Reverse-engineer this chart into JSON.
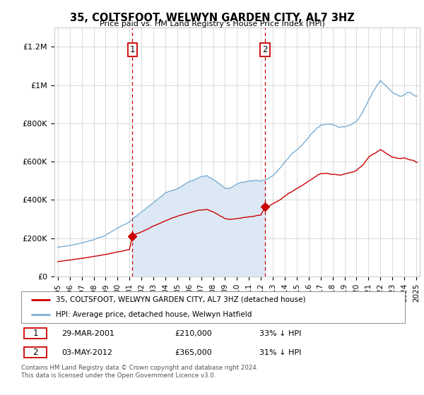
{
  "title": "35, COLTSFOOT, WELWYN GARDEN CITY, AL7 3HZ",
  "subtitle": "Price paid vs. HM Land Registry's House Price Index (HPI)",
  "legend_line1": "35, COLTSFOOT, WELWYN GARDEN CITY, AL7 3HZ (detached house)",
  "legend_line2": "HPI: Average price, detached house, Welwyn Hatfield",
  "transaction1_date": "29-MAR-2001",
  "transaction1_price": "£210,000",
  "transaction1_hpi": "33% ↓ HPI",
  "transaction2_date": "03-MAY-2012",
  "transaction2_price": "£365,000",
  "transaction2_hpi": "31% ↓ HPI",
  "footer": "Contains HM Land Registry data © Crown copyright and database right 2024.\nThis data is licensed under the Open Government Licence v3.0.",
  "price_color": "#cc0000",
  "hpi_color": "#7bafd4",
  "shaded_color": "#dce9f5",
  "vline_color": "#cc0000",
  "transaction1_year": 2001.24,
  "transaction2_year": 2012.34,
  "xlim_min": 1994.7,
  "xlim_max": 2025.3,
  "ylim_min": 0,
  "ylim_max": 1300000
}
